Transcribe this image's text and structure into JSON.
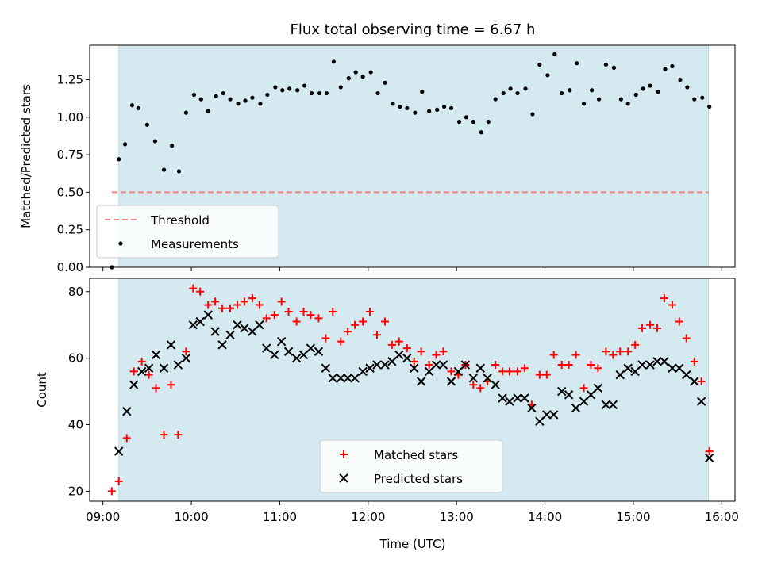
{
  "title": "Flux total observing time = 6.67 h",
  "colors": {
    "observing_window": "#d4eaf0",
    "threshold": "#f08080",
    "measurements": "#000000",
    "matched": "#ff0000",
    "predicted": "#000000"
  },
  "chart_data": [
    {
      "type": "scatter",
      "ylabel": "Matched/Predicted stars",
      "xlim": [
        8.85,
        16.15
      ],
      "ylim": [
        0.0,
        1.48
      ],
      "yticks": [
        0.0,
        0.25,
        0.5,
        0.75,
        1.0,
        1.25
      ],
      "ytick_labels": [
        "0.00",
        "0.25",
        "0.50",
        "0.75",
        "1.00",
        "1.25"
      ],
      "shaded_span": [
        9.18,
        15.85
      ],
      "threshold": {
        "name": "Threshold",
        "value": 0.5,
        "x": [
          9.1,
          15.85
        ]
      },
      "legend_position": "lower-left",
      "series": [
        {
          "name": "Measurements",
          "x": [
            9.1,
            9.18,
            9.25,
            9.33,
            9.4,
            9.5,
            9.59,
            9.69,
            9.78,
            9.86,
            9.94,
            10.03,
            10.11,
            10.19,
            10.28,
            10.36,
            10.44,
            10.53,
            10.61,
            10.69,
            10.78,
            10.86,
            10.95,
            11.03,
            11.11,
            11.2,
            11.28,
            11.36,
            11.45,
            11.53,
            11.61,
            11.69,
            11.78,
            11.86,
            11.94,
            12.03,
            12.11,
            12.19,
            12.28,
            12.36,
            12.44,
            12.53,
            12.61,
            12.69,
            12.78,
            12.86,
            12.94,
            13.03,
            13.11,
            13.19,
            13.28,
            13.36,
            13.44,
            13.53,
            13.61,
            13.69,
            13.78,
            13.86,
            13.94,
            14.03,
            14.11,
            14.19,
            14.28,
            14.36,
            14.44,
            14.53,
            14.61,
            14.69,
            14.78,
            14.86,
            14.94,
            15.03,
            15.11,
            15.19,
            15.28,
            15.36,
            15.44,
            15.53,
            15.61,
            15.69,
            15.78,
            15.86
          ],
          "y": [
            0.0,
            0.72,
            0.82,
            1.08,
            1.06,
            0.95,
            0.84,
            0.65,
            0.81,
            0.64,
            1.03,
            1.15,
            1.12,
            1.04,
            1.14,
            1.16,
            1.12,
            1.09,
            1.11,
            1.13,
            1.09,
            1.15,
            1.2,
            1.18,
            1.19,
            1.18,
            1.21,
            1.16,
            1.16,
            1.16,
            1.37,
            1.2,
            1.26,
            1.3,
            1.27,
            1.3,
            1.16,
            1.23,
            1.09,
            1.07,
            1.06,
            1.03,
            1.17,
            1.04,
            1.05,
            1.07,
            1.06,
            0.97,
            1.0,
            0.97,
            0.9,
            0.97,
            1.12,
            1.16,
            1.19,
            1.16,
            1.19,
            1.02,
            1.35,
            1.28,
            1.42,
            1.16,
            1.18,
            1.36,
            1.09,
            1.18,
            1.12,
            1.35,
            1.33,
            1.12,
            1.09,
            1.15,
            1.19,
            1.21,
            1.17,
            1.32,
            1.34,
            1.25,
            1.2,
            1.12,
            1.13,
            1.07
          ]
        }
      ]
    },
    {
      "type": "scatter",
      "xlabel": "Time (UTC)",
      "ylabel": "Count",
      "xlim": [
        8.85,
        16.15
      ],
      "ylim": [
        17,
        84
      ],
      "xticks": [
        9,
        10,
        11,
        12,
        13,
        14,
        15,
        16
      ],
      "xtick_labels": [
        "09:00",
        "10:00",
        "11:00",
        "12:00",
        "13:00",
        "14:00",
        "15:00",
        "16:00"
      ],
      "yticks": [
        20,
        40,
        60,
        80
      ],
      "ytick_labels": [
        "20",
        "40",
        "60",
        "80"
      ],
      "shaded_span": [
        9.18,
        15.85
      ],
      "legend_position": "lower-center",
      "series": [
        {
          "name": "Matched stars",
          "marker": "plus",
          "x": [
            9.1,
            9.18,
            9.27,
            9.35,
            9.44,
            9.52,
            9.6,
            9.69,
            9.77,
            9.85,
            9.94,
            10.02,
            10.1,
            10.19,
            10.27,
            10.35,
            10.44,
            10.52,
            10.6,
            10.69,
            10.77,
            10.85,
            10.94,
            11.02,
            11.1,
            11.19,
            11.27,
            11.35,
            11.44,
            11.52,
            11.6,
            11.69,
            11.77,
            11.85,
            11.94,
            12.02,
            12.1,
            12.19,
            12.27,
            12.35,
            12.44,
            12.52,
            12.6,
            12.69,
            12.77,
            12.85,
            12.94,
            13.02,
            13.1,
            13.19,
            13.27,
            13.35,
            13.44,
            13.52,
            13.6,
            13.69,
            13.77,
            13.85,
            13.94,
            14.02,
            14.1,
            14.19,
            14.27,
            14.35,
            14.44,
            14.52,
            14.6,
            14.69,
            14.77,
            14.85,
            14.94,
            15.02,
            15.1,
            15.19,
            15.27,
            15.35,
            15.44,
            15.52,
            15.6,
            15.69,
            15.77,
            15.86
          ],
          "y": [
            20,
            23,
            36,
            56,
            59,
            55,
            51,
            37,
            52,
            37,
            62,
            81,
            80,
            76,
            77,
            75,
            75,
            76,
            77,
            78,
            76,
            72,
            73,
            77,
            74,
            71,
            74,
            73,
            72,
            66,
            74,
            65,
            68,
            70,
            71,
            74,
            67,
            71,
            64,
            65,
            63,
            59,
            62,
            58,
            61,
            62,
            56,
            55,
            58,
            52,
            51,
            53,
            58,
            56,
            56,
            56,
            57,
            46,
            55,
            55,
            61,
            58,
            58,
            61,
            51,
            58,
            57,
            62,
            61,
            62,
            62,
            64,
            69,
            70,
            69,
            78,
            76,
            71,
            66,
            59,
            53,
            32
          ]
        },
        {
          "name": "Predicted stars",
          "marker": "x",
          "x": [
            9.18,
            9.27,
            9.35,
            9.44,
            9.52,
            9.6,
            9.69,
            9.77,
            9.85,
            9.94,
            10.02,
            10.1,
            10.19,
            10.27,
            10.35,
            10.44,
            10.52,
            10.6,
            10.69,
            10.77,
            10.85,
            10.94,
            11.02,
            11.1,
            11.19,
            11.27,
            11.35,
            11.44,
            11.52,
            11.6,
            11.69,
            11.77,
            11.85,
            11.94,
            12.02,
            12.1,
            12.19,
            12.27,
            12.35,
            12.44,
            12.52,
            12.6,
            12.69,
            12.77,
            12.85,
            12.94,
            13.02,
            13.1,
            13.19,
            13.27,
            13.35,
            13.44,
            13.52,
            13.6,
            13.69,
            13.77,
            13.85,
            13.94,
            14.02,
            14.1,
            14.19,
            14.27,
            14.35,
            14.44,
            14.52,
            14.6,
            14.69,
            14.77,
            14.85,
            14.94,
            15.02,
            15.1,
            15.19,
            15.27,
            15.35,
            15.44,
            15.52,
            15.6,
            15.69,
            15.77,
            15.86
          ],
          "y": [
            32,
            44,
            52,
            56,
            57,
            61,
            57,
            64,
            58,
            60,
            70,
            71,
            73,
            68,
            64,
            67,
            70,
            69,
            68,
            70,
            63,
            61,
            65,
            62,
            60,
            61,
            63,
            62,
            57,
            54,
            54,
            54,
            54,
            56,
            57,
            58,
            58,
            59,
            61,
            60,
            57,
            53,
            56,
            58,
            58,
            53,
            56,
            58,
            54,
            57,
            54,
            52,
            48,
            47,
            48,
            48,
            45,
            41,
            43,
            43,
            50,
            49,
            45,
            47,
            49,
            51,
            46,
            46,
            55,
            57,
            56,
            58,
            58,
            59,
            59,
            57,
            57,
            55,
            53,
            47,
            30
          ]
        }
      ]
    }
  ]
}
